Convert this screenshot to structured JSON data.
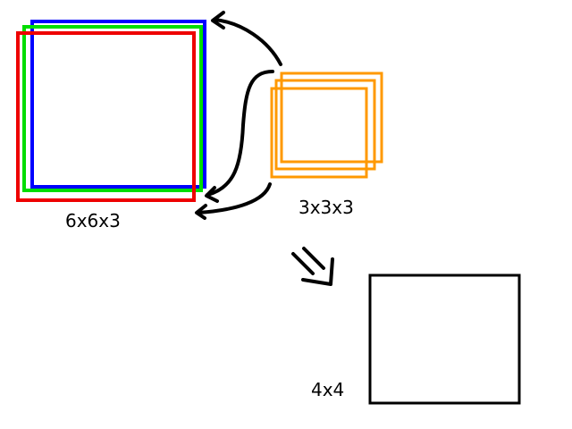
{
  "input_volume": {
    "label": "6x6x3",
    "channel_colors": [
      "#0000ff",
      "#00dd00",
      "#ee0000"
    ]
  },
  "filter": {
    "label": "3x3x3",
    "color": "#ff9900"
  },
  "output": {
    "label": "4x4",
    "color": "#000000"
  },
  "connector_color": "#000000"
}
